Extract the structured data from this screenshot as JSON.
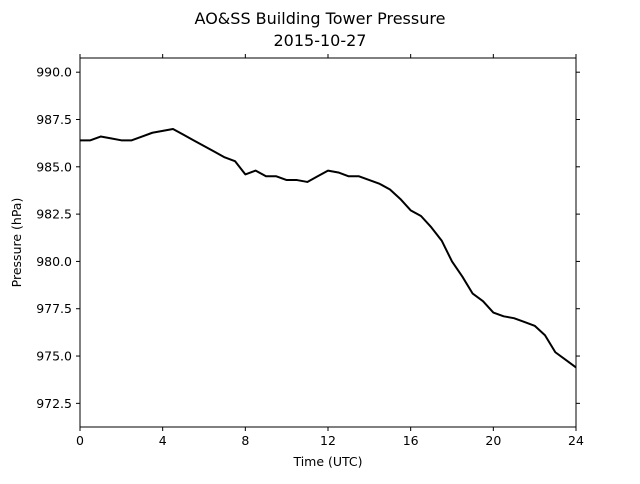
{
  "chart_data": {
    "type": "line",
    "title": "AO&SS Building Tower Pressure",
    "subtitle": "2015-10-27",
    "xlabel": "Time (UTC)",
    "ylabel": "Pressure (hPa)",
    "xlim": [
      0,
      24
    ],
    "ylim": [
      971.25,
      990.75
    ],
    "x_ticks": [
      0,
      4,
      8,
      12,
      16,
      20,
      24
    ],
    "x_tick_labels": [
      "0",
      "4",
      "8",
      "12",
      "16",
      "20",
      "24"
    ],
    "y_ticks": [
      972.5,
      975.0,
      977.5,
      980.0,
      982.5,
      985.0,
      987.5,
      990.0
    ],
    "y_tick_labels": [
      "972.5",
      "975.0",
      "977.5",
      "980.0",
      "982.5",
      "985.0",
      "987.5",
      "990.0"
    ],
    "grid": false,
    "line_color": "#000000",
    "series": [
      {
        "x": [
          0,
          0.5,
          1.0,
          1.5,
          2.0,
          2.5,
          3.0,
          3.5,
          4.0,
          4.5,
          5.0,
          5.5,
          6.0,
          6.5,
          7.0,
          7.5,
          8.0,
          8.5,
          9.0,
          9.5,
          10.0,
          10.5,
          11.0,
          11.5,
          12.0,
          12.5,
          13.0,
          13.5,
          14.0,
          14.5,
          15.0,
          15.5,
          16.0,
          16.5,
          17.0,
          17.5,
          18.0,
          18.5,
          19.0,
          19.5,
          20.0,
          20.5,
          21.0,
          21.5,
          22.0,
          22.5,
          23.0,
          23.5,
          24.0
        ],
        "y": [
          986.4,
          986.4,
          986.6,
          986.5,
          986.4,
          986.4,
          986.6,
          986.8,
          986.9,
          987.0,
          986.7,
          986.4,
          986.1,
          985.8,
          985.5,
          985.3,
          984.6,
          984.8,
          984.5,
          984.5,
          984.3,
          984.3,
          984.2,
          984.5,
          984.8,
          984.7,
          984.5,
          984.5,
          984.3,
          984.1,
          983.8,
          983.3,
          982.7,
          982.4,
          981.8,
          981.1,
          980.0,
          979.2,
          978.3,
          977.9,
          977.3,
          977.1,
          977.0,
          976.8,
          976.6,
          976.1,
          975.2,
          974.8,
          974.4
        ]
      }
    ]
  }
}
